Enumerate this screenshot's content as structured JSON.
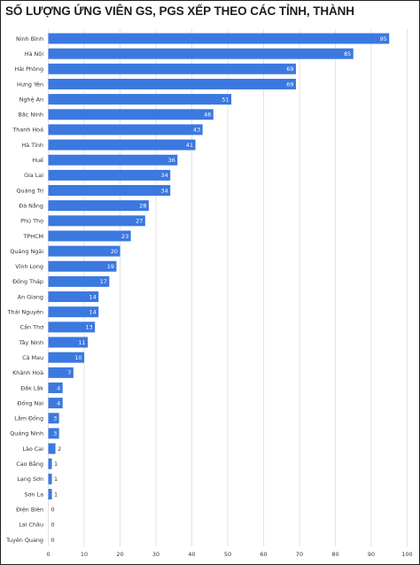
{
  "chart_data": {
    "type": "bar",
    "orientation": "horizontal",
    "title": "SỐ LƯỢNG ỨNG VIÊN GS, PGS XẾP THEO CÁC TỈNH, THÀNH",
    "xlabel": "",
    "ylabel": "",
    "xlim": [
      0,
      100
    ],
    "x_ticks": [
      0,
      10,
      20,
      30,
      40,
      50,
      60,
      70,
      80,
      90,
      100
    ],
    "grid": true,
    "bar_color": "#3b78e0",
    "categories": [
      "Ninh Bình",
      "Hà Nội",
      "Hải Phòng",
      "Hưng Yên",
      "Nghệ An",
      "Bắc Ninh",
      "Thanh Hoá",
      "Hà Tĩnh",
      "Huế",
      "Gia Lai",
      "Quảng Trị",
      "Đà Nẵng",
      "Phú Thọ",
      "TPHCM",
      "Quảng Ngãi",
      "Vĩnh Long",
      "Đồng Tháp",
      "An Giang",
      "Thái Nguyên",
      "Cần Thơ",
      "Tây Ninh",
      "Cà Mau",
      "Khánh Hoà",
      "Đắk Lắk",
      "Đồng Nai",
      "Lâm Đồng",
      "Quảng Ninh",
      "Lào Cai",
      "Cao Bằng",
      "Lạng Sơn",
      "Sơn La",
      "Điện Biên",
      "Lai Châu",
      "Tuyên Quang"
    ],
    "values": [
      95,
      85,
      69,
      69,
      51,
      46,
      43,
      41,
      36,
      34,
      34,
      28,
      27,
      23,
      20,
      19,
      17,
      14,
      14,
      13,
      11,
      10,
      7,
      4,
      4,
      3,
      3,
      2,
      1,
      1,
      1,
      0,
      0,
      0
    ]
  }
}
